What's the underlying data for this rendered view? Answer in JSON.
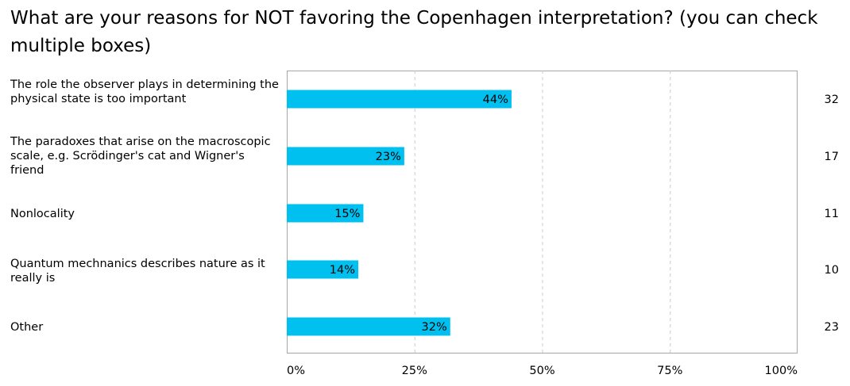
{
  "chart_data": {
    "type": "bar",
    "orientation": "horizontal",
    "title": "What are your reasons for NOT favoring the Copenhagen interpretation? (you can check multiple boxes)",
    "categories": [
      "The role the observer plays in determining the physical state is too important",
      "The paradoxes that arise on the macroscopic scale, e.g. Scrödinger's cat and Wigner's friend",
      "Nonlocality",
      "Quantum mechnanics describes nature as it really is",
      "Other"
    ],
    "values": [
      44,
      23,
      15,
      14,
      32
    ],
    "value_labels": [
      "44%",
      "23%",
      "15%",
      "14%",
      "32%"
    ],
    "counts": [
      "32",
      "17",
      "11",
      "10",
      "23"
    ],
    "xlim": [
      0,
      100
    ],
    "xticks": [
      "0%",
      "25%",
      "50%",
      "75%",
      "100%"
    ],
    "xlabel": "",
    "ylabel": "",
    "grid": "vertical dashed",
    "bar_color": "#00c0f0"
  }
}
